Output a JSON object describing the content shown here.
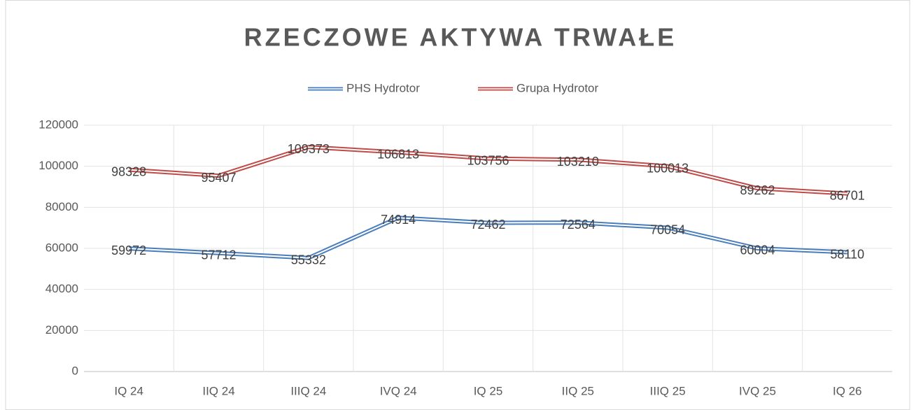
{
  "chart_data": {
    "type": "line",
    "title": "RZECZOWE AKTYWA TRWAŁE",
    "categories": [
      "IQ 24",
      "IIQ 24",
      "IIIQ 24",
      "IVQ 24",
      "IQ 25",
      "IIQ 25",
      "IIIQ 25",
      "IVQ 25",
      "IQ 26"
    ],
    "series": [
      {
        "name": "PHS Hydrotor",
        "color": "#4a7ebb",
        "values": [
          59972,
          57712,
          55332,
          74914,
          72462,
          72564,
          70054,
          60004,
          58110
        ]
      },
      {
        "name": "Grupa Hydrotor",
        "color": "#be4b48",
        "values": [
          98328,
          95407,
          109373,
          106813,
          103756,
          103210,
          100013,
          89262,
          86701
        ]
      }
    ],
    "ylim": [
      0,
      120000
    ],
    "yticks": [
      0,
      20000,
      40000,
      60000,
      80000,
      100000,
      120000
    ],
    "grid": true,
    "legend": "top"
  }
}
